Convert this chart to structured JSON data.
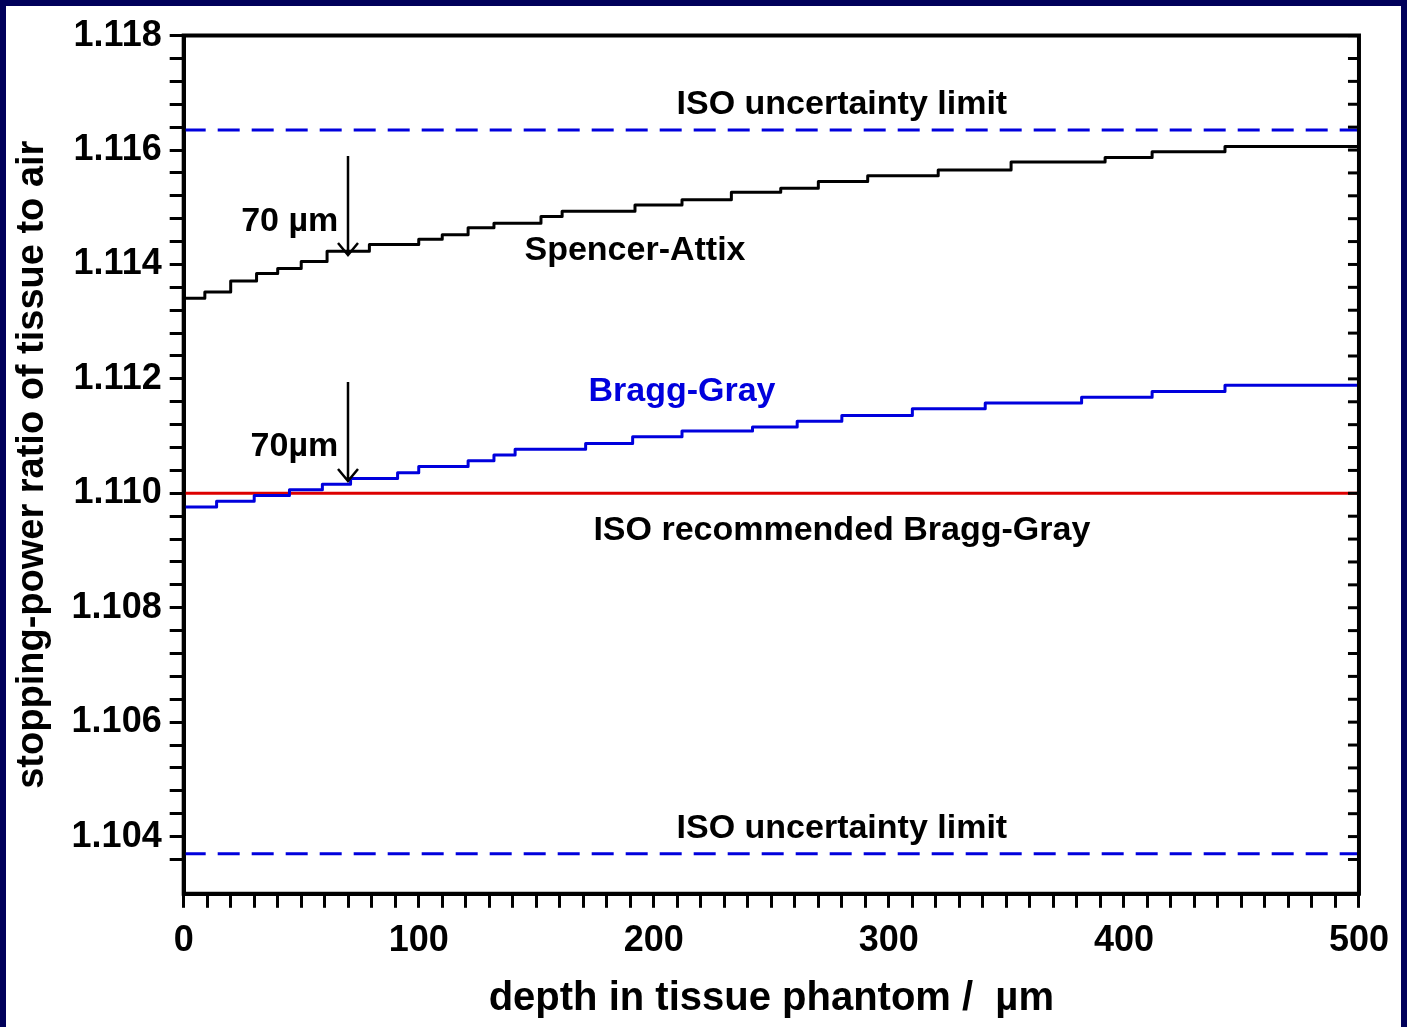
{
  "chart_data": {
    "type": "step",
    "xlabel": "depth in tissue phantom /  µm",
    "ylabel": "stopping-power ratio of tissue to air",
    "xlim": [
      0,
      500
    ],
    "ylim": [
      1.103,
      1.118
    ],
    "xticks": [
      0,
      {
        "value": 10,
        "label": null
      },
      {
        "value": 20,
        "label": null
      },
      {
        "value": 30,
        "label": null
      },
      {
        "value": 40,
        "label": null
      },
      {
        "value": 50,
        "label": null
      },
      {
        "value": 60,
        "label": null
      },
      {
        "value": 70,
        "label": null
      },
      {
        "value": 80,
        "label": null
      },
      {
        "value": 90,
        "label": null
      },
      100,
      {
        "value": 110,
        "label": null
      },
      {
        "value": 120,
        "label": null
      },
      {
        "value": 130,
        "label": null
      },
      {
        "value": 140,
        "label": null
      },
      {
        "value": 150,
        "label": null
      },
      {
        "value": 160,
        "label": null
      },
      {
        "value": 170,
        "label": null
      },
      {
        "value": 180,
        "label": null
      },
      {
        "value": 190,
        "label": null
      },
      200,
      {
        "value": 210,
        "label": null
      },
      {
        "value": 220,
        "label": null
      },
      {
        "value": 230,
        "label": null
      },
      {
        "value": 240,
        "label": null
      },
      {
        "value": 250,
        "label": null
      },
      {
        "value": 260,
        "label": null
      },
      {
        "value": 270,
        "label": null
      },
      {
        "value": 280,
        "label": null
      },
      {
        "value": 290,
        "label": null
      },
      300,
      {
        "value": 310,
        "label": null
      },
      {
        "value": 320,
        "label": null
      },
      {
        "value": 330,
        "label": null
      },
      {
        "value": 340,
        "label": null
      },
      {
        "value": 350,
        "label": null
      },
      {
        "value": 360,
        "label": null
      },
      {
        "value": 370,
        "label": null
      },
      {
        "value": 380,
        "label": null
      },
      {
        "value": 390,
        "label": null
      },
      400,
      {
        "value": 410,
        "label": null
      },
      {
        "value": 420,
        "label": null
      },
      {
        "value": 430,
        "label": null
      },
      {
        "value": 440,
        "label": null
      },
      {
        "value": 450,
        "label": null
      },
      {
        "value": 460,
        "label": null
      },
      {
        "value": 470,
        "label": null
      },
      {
        "value": 480,
        "label": null
      },
      {
        "value": 490,
        "label": null
      },
      500
    ],
    "yticks": [
      {
        "value": 1.1036,
        "label": null
      },
      1.104,
      {
        "value": 1.1044,
        "label": null
      },
      {
        "value": 1.1048,
        "label": null
      },
      {
        "value": 1.1052,
        "label": null
      },
      {
        "value": 1.1056,
        "label": null
      },
      1.106,
      {
        "value": 1.1064,
        "label": null
      },
      {
        "value": 1.1068,
        "label": null
      },
      {
        "value": 1.1072,
        "label": null
      },
      {
        "value": 1.1076,
        "label": null
      },
      1.108,
      {
        "value": 1.1084,
        "label": null
      },
      {
        "value": 1.1088,
        "label": null
      },
      {
        "value": 1.1092,
        "label": null
      },
      {
        "value": 1.1096,
        "label": null
      },
      {
        "value": 1.11,
        "label": "1.110"
      },
      {
        "value": 1.1104,
        "label": null
      },
      {
        "value": 1.1108,
        "label": null
      },
      {
        "value": 1.1112,
        "label": null
      },
      {
        "value": 1.1116,
        "label": null
      },
      1.112,
      {
        "value": 1.1124,
        "label": null
      },
      {
        "value": 1.1128,
        "label": null
      },
      {
        "value": 1.1132,
        "label": null
      },
      {
        "value": 1.1136,
        "label": null
      },
      1.114,
      {
        "value": 1.1144,
        "label": null
      },
      {
        "value": 1.1148,
        "label": null
      },
      {
        "value": 1.1152,
        "label": null
      },
      {
        "value": 1.1156,
        "label": null
      },
      1.116,
      {
        "value": 1.1164,
        "label": null
      },
      {
        "value": 1.1168,
        "label": null
      },
      {
        "value": 1.1172,
        "label": null
      },
      {
        "value": 1.1176,
        "label": null
      },
      1.118
    ],
    "grid": false,
    "legend": false,
    "marker": "none",
    "series": [
      {
        "name": "Spencer-Attix",
        "color": "#000000",
        "x": [
          0,
          9,
          20,
          31,
          40,
          50,
          61,
          79,
          100,
          110,
          121,
          132,
          152,
          161,
          192,
          212,
          233,
          254,
          270,
          291,
          321,
          352,
          392,
          412,
          443,
          483,
          500
        ],
        "values": [
          1.1132,
          1.11341,
          1.11352,
          1.11371,
          1.11384,
          1.11393,
          1.11405,
          1.11423,
          1.11435,
          1.11444,
          1.11452,
          1.11464,
          1.11472,
          1.11484,
          1.11493,
          1.11504,
          1.11513,
          1.11526,
          1.11533,
          1.11545,
          1.11555,
          1.11565,
          1.11579,
          1.11587,
          1.11597,
          1.11606,
          1.11606
        ]
      },
      {
        "name": "Bragg-Gray",
        "color": "#0000dd",
        "x": [
          0,
          14,
          30,
          45,
          59,
          71,
          91,
          100,
          121,
          132,
          141,
          171,
          191,
          212,
          242,
          261,
          280,
          310,
          341,
          382,
          412,
          443,
          483,
          500
        ],
        "values": [
          1.10966,
          1.10976,
          1.10986,
          1.10996,
          1.11006,
          1.11016,
          1.11026,
          1.11036,
          1.11047,
          1.11057,
          1.11067,
          1.11077,
          1.11087,
          1.11099,
          1.11109,
          1.11116,
          1.11126,
          1.11136,
          1.11148,
          1.11158,
          1.11168,
          1.11178,
          1.11189,
          1.11189
        ]
      }
    ],
    "ref_lines": [
      {
        "axis": "y",
        "value": 1.11635,
        "label": "ISO uncertainty limit",
        "color": "#0000dd",
        "line_style": "dashed"
      },
      {
        "axis": "y",
        "value": 1.1037,
        "label": "ISO uncertainty limit",
        "color": "#0000dd",
        "line_style": "dashed"
      },
      {
        "axis": "y",
        "value": 1.11,
        "label": "ISO recommended Bragg-Gray",
        "color": "#dd0000",
        "line_style": "solid"
      }
    ],
    "annotations": [
      {
        "text": "70 µm",
        "x": 70,
        "y": 1.11414
      },
      {
        "text": "70µm",
        "x": 70,
        "y": 1.1102
      }
    ]
  }
}
